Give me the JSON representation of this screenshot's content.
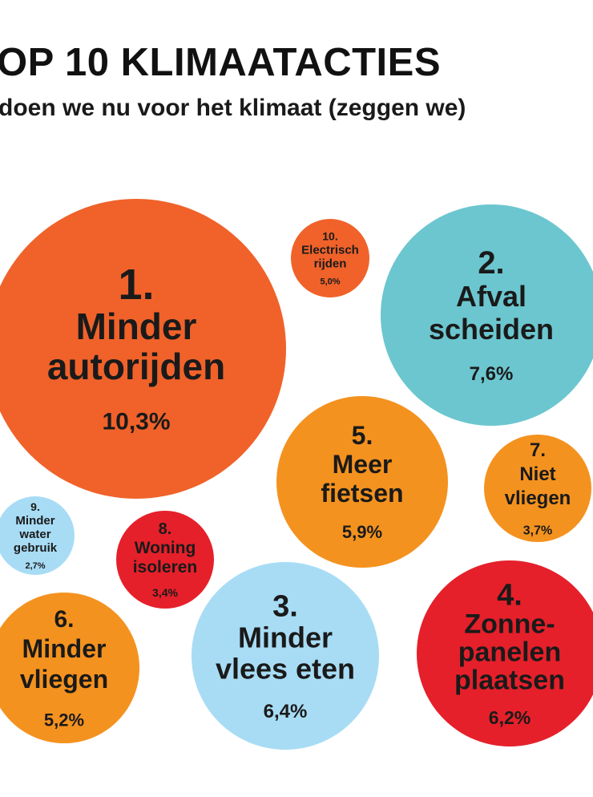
{
  "header": {
    "title": "OP 10 KLIMAATACTIES",
    "subtitle": "doen we nu voor het klimaat (zeggen we)"
  },
  "chart_data": {
    "type": "bubble",
    "title": "OP 10 KLIMAATACTIES",
    "subtitle": "doen we nu voor het klimaat (zeggen we)",
    "unit": "%",
    "colors": {
      "red_orange": "#f0622a",
      "teal": "#6cc6cf",
      "orange": "#f4921f",
      "red": "#e5202a",
      "light_blue": "#a8dcf5",
      "text": "#1a1a1a"
    },
    "items": [
      {
        "rank": "1.",
        "label": [
          "Minder",
          "autorijden"
        ],
        "value": 10.3,
        "value_label": "10,3%",
        "color": "#f0622a"
      },
      {
        "rank": "2.",
        "label": [
          "Afval",
          "scheiden"
        ],
        "value": 7.6,
        "value_label": "7,6%",
        "color": "#6cc6cf"
      },
      {
        "rank": "3.",
        "label": [
          "Minder",
          "vlees eten"
        ],
        "value": 6.4,
        "value_label": "6,4%",
        "color": "#a8dcf5"
      },
      {
        "rank": "4.",
        "label": [
          "Zonne-",
          "panelen",
          "plaatsen"
        ],
        "value": 6.2,
        "value_label": "6,2%",
        "color": "#e5202a"
      },
      {
        "rank": "5.",
        "label": [
          "Meer",
          "fietsen"
        ],
        "value": 5.9,
        "value_label": "5,9%",
        "color": "#f4921f"
      },
      {
        "rank": "6.",
        "label": [
          "Minder",
          "vliegen"
        ],
        "value": 5.2,
        "value_label": "5,2%",
        "color": "#f4921f"
      },
      {
        "rank": "7.",
        "label": [
          "Niet",
          "vliegen"
        ],
        "value": 3.7,
        "value_label": "3,7%",
        "color": "#f4921f"
      },
      {
        "rank": "8.",
        "label": [
          "Woning",
          "isoleren"
        ],
        "value": 3.4,
        "value_label": "3,4%",
        "color": "#e5202a"
      },
      {
        "rank": "9.",
        "label": [
          "Minder",
          "water",
          "gebruik"
        ],
        "value": 2.7,
        "value_label": "2,7%",
        "color": "#a8dcf5"
      },
      {
        "rank": "10.",
        "label": [
          "Electrisch",
          "rijden"
        ],
        "value": 5.0,
        "value_label": "5,0%",
        "color": "#f0622a"
      }
    ]
  }
}
